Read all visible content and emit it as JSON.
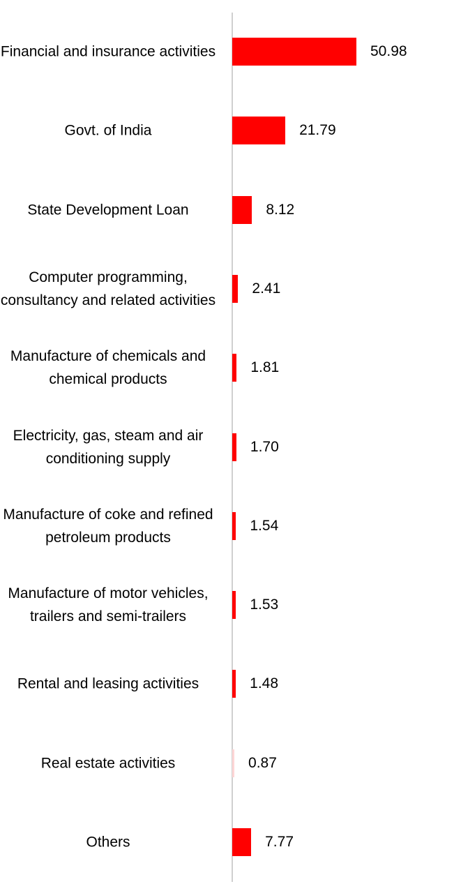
{
  "chart_data": {
    "type": "bar",
    "orientation": "horizontal",
    "categories": [
      "Financial and insurance activities",
      "Govt. of India",
      "State Development Loan",
      "Computer programming, consultancy and related activities",
      "Manufacture of chemicals and chemical products",
      "Electricity, gas, steam and air conditioning supply",
      "Manufacture of coke and refined petroleum products",
      "Manufacture of motor vehicles, trailers and semi-trailers",
      "Rental and leasing activities",
      "Real estate activities",
      "Others"
    ],
    "values": [
      50.98,
      21.79,
      8.12,
      2.41,
      1.81,
      1.7,
      1.54,
      1.53,
      1.48,
      0.87,
      7.77
    ],
    "value_labels": [
      "50.98",
      "21.79",
      "8.12",
      "2.41",
      "1.81",
      "1.70",
      "1.54",
      "1.53",
      "1.48",
      "0.87",
      "7.77"
    ],
    "title": "",
    "xlabel": "",
    "ylabel": "",
    "grid": false,
    "legend": "none",
    "bar_color": "#ff0000",
    "last_bar_color": "#ff0000",
    "real_estate_bar_color": "#ffd6d6"
  }
}
